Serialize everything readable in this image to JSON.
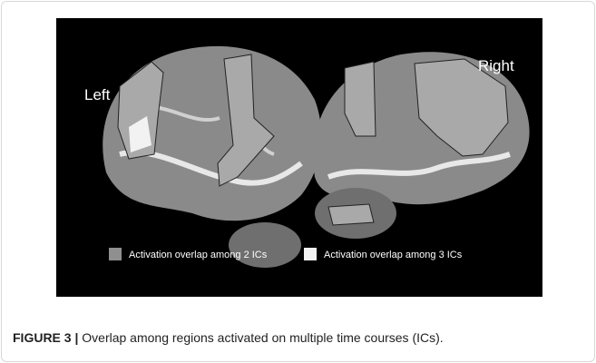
{
  "figure": {
    "labels": [
      "Left",
      "Right"
    ],
    "legend": [
      "Activation overlap among 2 ICs",
      "Activation overlap among 3 ICs"
    ],
    "caption": {
      "label": "FIGURE 3 |",
      "text": "Overlap among regions activated on multiple time courses (ICs)."
    }
  }
}
